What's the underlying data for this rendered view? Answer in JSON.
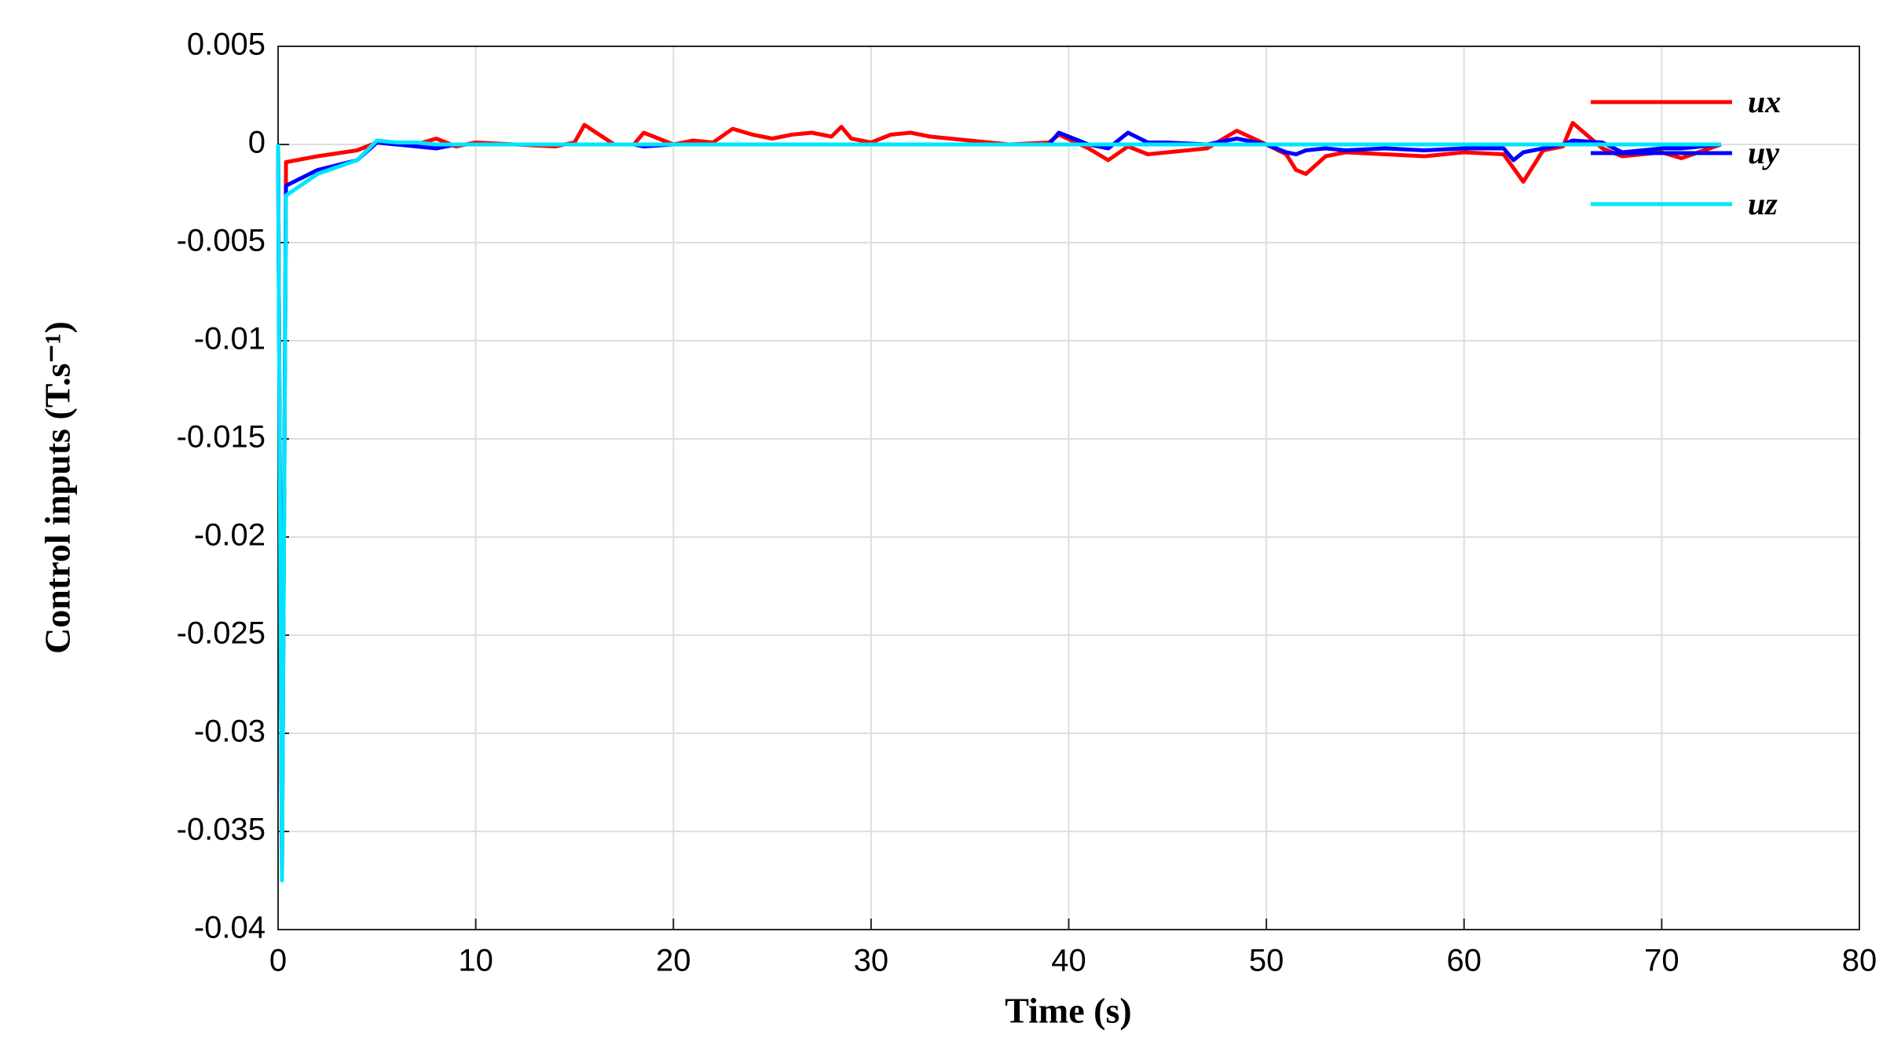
{
  "chart_data": {
    "type": "line",
    "x_label": "Time (s)",
    "y_label": "Control inputs (T.s⁻¹)",
    "x": [
      0,
      0.2,
      0.4,
      2,
      4,
      5,
      6,
      7,
      8,
      9,
      10,
      12,
      14,
      15,
      15.5,
      17,
      18,
      18.5,
      20,
      21,
      22,
      23,
      24,
      25,
      26,
      27,
      28,
      28.5,
      29,
      30,
      31,
      32,
      33,
      35,
      37,
      39,
      39.5,
      41,
      42,
      43,
      44,
      45,
      47,
      48.5,
      50,
      51,
      51.5,
      52,
      53,
      54,
      56,
      58,
      60,
      62,
      62.5,
      63,
      64,
      65,
      65.5,
      67,
      68,
      70,
      71,
      73
    ],
    "series": [
      {
        "name": "ux",
        "color": "#ff0000",
        "values": [
          0,
          -0.037,
          -0.0009,
          -0.0006,
          -0.0003,
          0.0001,
          0,
          0,
          0.0003,
          -0.0001,
          0.0001,
          0,
          -0.0001,
          0.0001,
          0.001,
          0,
          0,
          0.0006,
          0,
          0.0002,
          0.0001,
          0.0008,
          0.0005,
          0.0003,
          0.0005,
          0.0006,
          0.0004,
          0.0009,
          0.0003,
          0.0001,
          0.0005,
          0.0006,
          0.0004,
          0.0002,
          0,
          0.0001,
          0.0005,
          -0.0002,
          -0.0008,
          -0.0001,
          -0.0005,
          -0.0004,
          -0.0002,
          0.0007,
          0,
          -0.0005,
          -0.0013,
          -0.0015,
          -0.0006,
          -0.0004,
          -0.0005,
          -0.0006,
          -0.0004,
          -0.0005,
          -0.0012,
          -0.0019,
          -0.0003,
          -0.0001,
          0.0011,
          -0.0002,
          -0.0006,
          -0.0004,
          -0.0007,
          0
        ]
      },
      {
        "name": "uy",
        "color": "#0000ff",
        "values": [
          0,
          -0.037,
          -0.0021,
          -0.0013,
          -0.0008,
          0.0001,
          0,
          -0.0001,
          -0.0002,
          0,
          0,
          0,
          0,
          0,
          0,
          0,
          0,
          -0.0001,
          0,
          0,
          0,
          0,
          0,
          0,
          0,
          0,
          0,
          0,
          0,
          0,
          0,
          0,
          0,
          0,
          0,
          0,
          0.0006,
          0,
          -0.0002,
          0.0006,
          0.0001,
          0.0001,
          0,
          0.0003,
          0,
          -0.0004,
          -0.0005,
          -0.0003,
          -0.0002,
          -0.0003,
          -0.0002,
          -0.0003,
          -0.0002,
          -0.0002,
          -0.0008,
          -0.0004,
          -0.0002,
          0,
          0.0002,
          0.0001,
          -0.0004,
          -0.0002,
          -0.0002,
          0
        ]
      },
      {
        "name": "uz",
        "color": "#00e5ff",
        "values": [
          0,
          -0.0375,
          -0.0026,
          -0.0015,
          -0.0008,
          0.0002,
          0.0001,
          0.0001,
          0,
          0,
          0,
          0,
          0,
          0,
          0,
          0,
          0,
          0,
          0,
          0,
          0,
          0,
          0,
          0,
          0,
          0,
          0,
          0,
          0,
          0,
          0,
          0,
          0,
          0,
          0,
          0,
          0,
          0,
          0,
          0,
          0,
          0,
          0,
          0,
          0,
          0,
          0,
          0,
          0,
          0,
          0,
          0,
          0,
          0,
          0,
          0,
          0,
          0,
          0,
          0,
          0,
          0,
          0,
          0
        ]
      }
    ],
    "xlim": [
      0,
      80
    ],
    "xticks": [
      0,
      10,
      20,
      30,
      40,
      50,
      60,
      70,
      80
    ],
    "ylim": [
      -0.04,
      0.005
    ],
    "yticks": [
      0.005,
      0,
      -0.005,
      -0.01,
      -0.015,
      -0.02,
      -0.025,
      -0.03,
      -0.035,
      -0.04
    ],
    "grid": true,
    "legend": "top-right",
    "label_color": "#0000ff"
  }
}
